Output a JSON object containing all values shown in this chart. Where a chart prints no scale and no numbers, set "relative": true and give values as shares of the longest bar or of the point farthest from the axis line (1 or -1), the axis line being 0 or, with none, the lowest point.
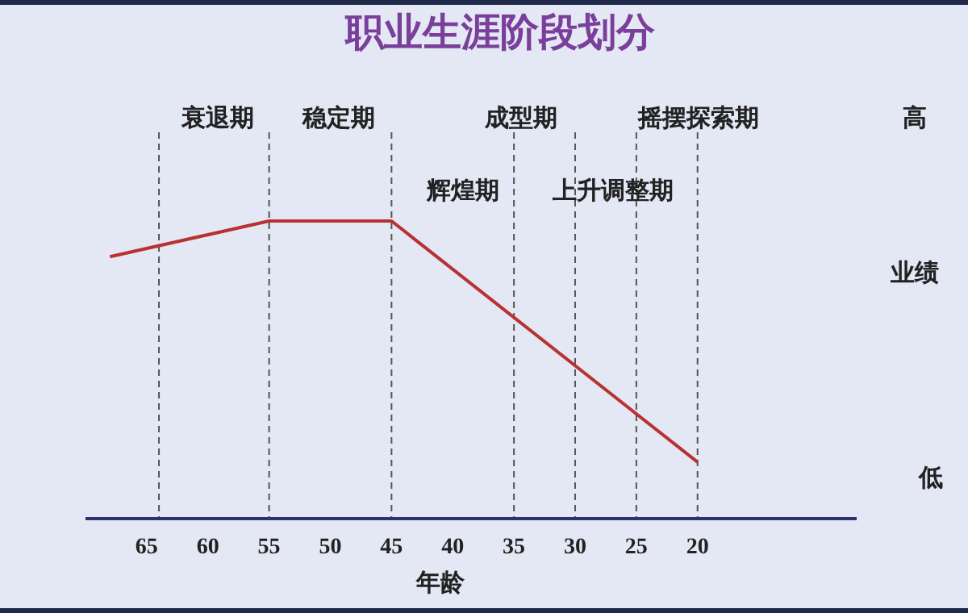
{
  "chart_data": {
    "type": "line",
    "title": "职业生涯阶段划分",
    "xlabel": "年龄",
    "ylabel": "业绩",
    "relative": true,
    "x": [
      68,
      55,
      45,
      20
    ],
    "series": [
      {
        "color": "#b83232",
        "values": [
          0.88,
          1,
          1,
          0.19
        ]
      }
    ],
    "xlim": [
      70,
      7
    ],
    "xticks": [
      65,
      60,
      55,
      50,
      45,
      40,
      35,
      30,
      25,
      20
    ],
    "ref_lines": [
      {
        "axis": "x",
        "value": 64,
        "line_style": "dashed",
        "color": "#555555"
      },
      {
        "axis": "x",
        "value": 55,
        "line_style": "dashed",
        "color": "#555555"
      },
      {
        "axis": "x",
        "value": 45,
        "line_style": "dashed",
        "color": "#555555"
      },
      {
        "axis": "x",
        "value": 35,
        "line_style": "dashed",
        "color": "#555555"
      },
      {
        "axis": "x",
        "value": 30,
        "line_style": "dashed",
        "color": "#555555"
      },
      {
        "axis": "x",
        "value": 25,
        "line_style": "dashed",
        "color": "#555555"
      },
      {
        "axis": "x",
        "value": 20,
        "line_style": "dashed",
        "color": "#555555"
      }
    ],
    "annotations": [
      "衰退期",
      "稳定期",
      "成型期",
      "摇摆探索期",
      "辉煌期",
      "上升调整期",
      "高",
      "低"
    ],
    "grid": false,
    "marker": "none",
    "line_style": "solid"
  }
}
